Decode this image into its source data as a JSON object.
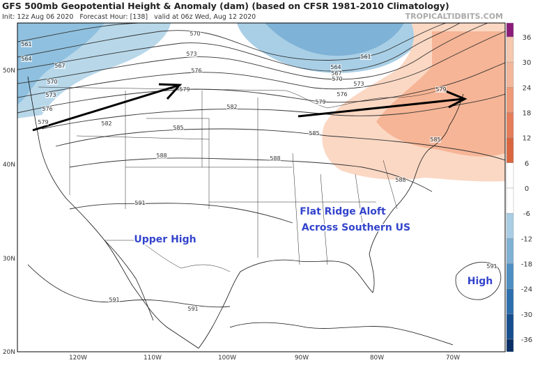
{
  "header": {
    "title": "GFS 500mb Geopotential Height & Anomaly (dam) (based on CFSR 1981-2010 Climatology)",
    "subtitle": "Init: 12z Aug 06 2020   Forecast Hour: [138]   valid at 06z Wed, Aug 12 2020",
    "site": "TROPICALTIDBITS.COM"
  },
  "colorbar": {
    "ticks": [
      36,
      30,
      24,
      18,
      12,
      6,
      0,
      -6,
      -12,
      -18,
      -24,
      -30,
      -36
    ]
  },
  "latitude_labels": [
    "50N",
    "40N",
    "30N",
    "20N"
  ],
  "longitude_labels": [
    "120W",
    "110W",
    "100W",
    "90W",
    "80W",
    "70W"
  ],
  "contour_labels": [
    561,
    564,
    567,
    570,
    573,
    576,
    579,
    582,
    570,
    573,
    576,
    579,
    582,
    585,
    588,
    588,
    591,
    591,
    591,
    561,
    564,
    567,
    570,
    573,
    576,
    579,
    579,
    585,
    585,
    588,
    591
  ],
  "annotations": [
    "Upper High",
    "Flat Ridge Aloft",
    "Across Southern US",
    "High"
  ]
}
